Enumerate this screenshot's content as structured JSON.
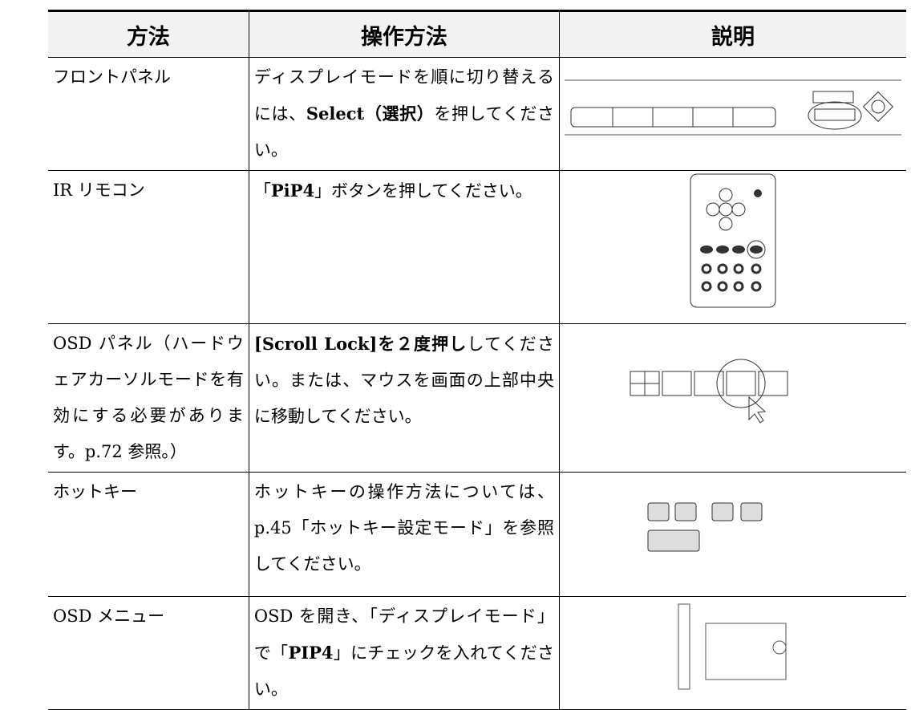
{
  "table": {
    "header": [
      "方法",
      "操作方法",
      "説明"
    ],
    "rows": [
      {
        "method": "フロントパネル",
        "operation": [
          {
            "text": "ディスプレイモードを順に切り替えるには、"
          },
          {
            "text": "Select（選択）",
            "bold": true
          },
          {
            "text": "を押してください。"
          }
        ]
      },
      {
        "method": "IR リモコン",
        "operation": [
          {
            "text": "「"
          },
          {
            "text": "PiP4",
            "bold": true
          },
          {
            "text": "」ボタンを押してください。"
          }
        ]
      },
      {
        "method": "OSD パネル（ハードウェアカーソルモードを有効にする必要があります。p.72 参照。）",
        "operation": [
          {
            "text": "[Scroll Lock]を２度押し",
            "bold": true
          },
          {
            "text": "してください。または、マウスを画面の上部中央に移動してください。"
          }
        ]
      },
      {
        "method": "ホットキー",
        "operation": [
          {
            "text": "ホットキーの操作方法については、p.45「ホットキー設定モード」を参照してください。"
          }
        ]
      },
      {
        "method": "OSD メニュー",
        "operation": [
          {
            "text": "OSD を開き、「ディスプレイモード」で「"
          },
          {
            "text": "PIP4",
            "bold": true
          },
          {
            "text": "」にチェックを入れてください。"
          }
        ]
      }
    ]
  }
}
